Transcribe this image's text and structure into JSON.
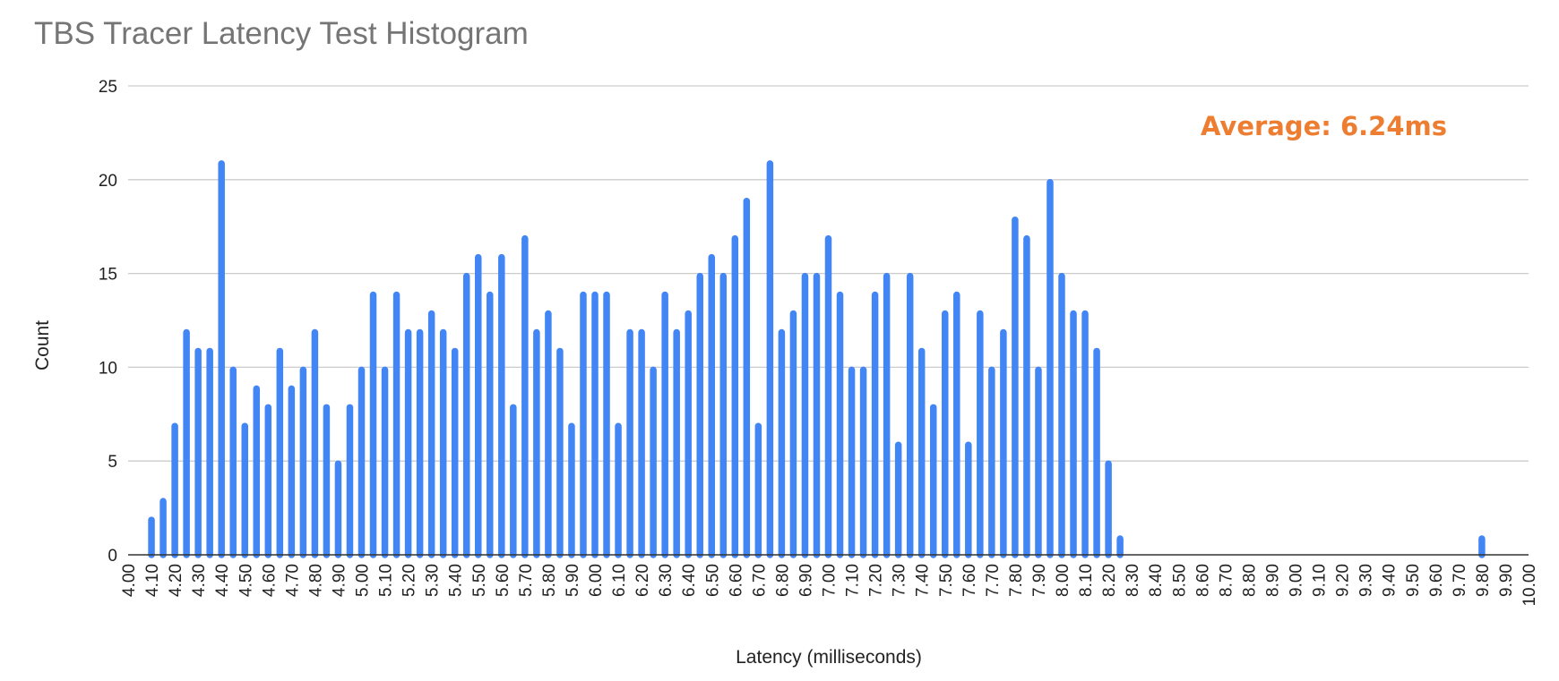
{
  "chart_data": {
    "type": "bar",
    "title": "TBS Tracer Latency Test Histogram",
    "xlabel": "Latency (milliseconds)",
    "ylabel": "Count",
    "ylim": [
      0,
      25
    ],
    "y_ticks": [
      "0",
      "5",
      "10",
      "15",
      "20",
      "25"
    ],
    "x_range": [
      4.0,
      10.0
    ],
    "x_tick_labels": [
      "4.00",
      "4.10",
      "4.20",
      "4.30",
      "4.40",
      "4.50",
      "4.60",
      "4.70",
      "4.80",
      "4.90",
      "5.00",
      "5.10",
      "5.20",
      "5.30",
      "5.40",
      "5.50",
      "5.60",
      "5.70",
      "5.80",
      "5.90",
      "6.00",
      "6.10",
      "6.20",
      "6.30",
      "6.40",
      "6.50",
      "6.60",
      "6.70",
      "6.80",
      "6.90",
      "7.00",
      "7.10",
      "7.20",
      "7.30",
      "7.40",
      "7.50",
      "7.60",
      "7.70",
      "7.80",
      "7.90",
      "8.00",
      "8.10",
      "8.20",
      "8.30",
      "8.40",
      "8.50",
      "8.60",
      "8.70",
      "8.80",
      "8.90",
      "9.00",
      "9.10",
      "9.20",
      "9.30",
      "9.40",
      "9.50",
      "9.60",
      "9.70",
      "9.80",
      "9.90",
      "10.00"
    ],
    "grid": true,
    "legend": "none",
    "bar_color": "#4285f4",
    "annotation": {
      "text": "Average: 6.24ms",
      "color": "#ed7d31"
    },
    "x": [
      4.1,
      4.15,
      4.2,
      4.25,
      4.3,
      4.35,
      4.4,
      4.45,
      4.5,
      4.55,
      4.6,
      4.65,
      4.7,
      4.75,
      4.8,
      4.85,
      4.9,
      4.95,
      5.0,
      5.05,
      5.1,
      5.15,
      5.2,
      5.25,
      5.3,
      5.35,
      5.4,
      5.45,
      5.5,
      5.55,
      5.6,
      5.65,
      5.7,
      5.75,
      5.8,
      5.85,
      5.9,
      5.95,
      6.0,
      6.05,
      6.1,
      6.15,
      6.2,
      6.25,
      6.3,
      6.35,
      6.4,
      6.45,
      6.5,
      6.55,
      6.6,
      6.65,
      6.7,
      6.75,
      6.8,
      6.85,
      6.9,
      6.95,
      7.0,
      7.05,
      7.1,
      7.15,
      7.2,
      7.25,
      7.3,
      7.35,
      7.4,
      7.45,
      7.5,
      7.55,
      7.6,
      7.65,
      7.7,
      7.75,
      7.8,
      7.85,
      7.9,
      7.95,
      8.0,
      8.05,
      8.1,
      8.15,
      8.2,
      8.25,
      9.8
    ],
    "values": [
      2,
      3,
      7,
      12,
      11,
      11,
      21,
      10,
      7,
      9,
      8,
      11,
      9,
      10,
      12,
      8,
      5,
      8,
      10,
      14,
      10,
      14,
      12,
      12,
      13,
      12,
      11,
      15,
      16,
      14,
      16,
      8,
      17,
      12,
      13,
      11,
      7,
      14,
      14,
      14,
      7,
      12,
      12,
      10,
      14,
      12,
      13,
      15,
      16,
      15,
      17,
      19,
      7,
      21,
      12,
      13,
      15,
      15,
      17,
      14,
      10,
      10,
      14,
      15,
      6,
      15,
      11,
      8,
      13,
      14,
      6,
      13,
      10,
      12,
      18,
      17,
      10,
      20,
      15,
      13,
      13,
      11,
      5,
      1,
      1
    ]
  }
}
